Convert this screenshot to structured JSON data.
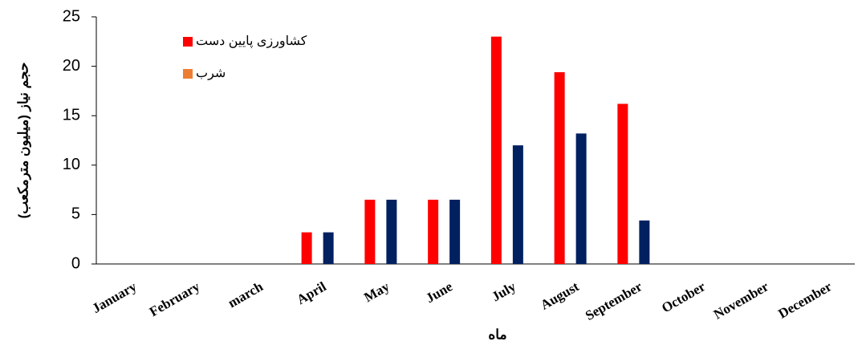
{
  "chart_data": {
    "type": "bar",
    "categories": [
      "January",
      "February",
      "march",
      "April",
      "May",
      "June",
      "July",
      "August",
      "September",
      "October",
      "November",
      "December"
    ],
    "series": [
      {
        "name": "کشاورزی پایین دست",
        "color": "#ff0000",
        "legend_color": "#ff0000",
        "values": [
          0,
          0,
          0,
          3.2,
          6.5,
          6.5,
          23,
          19.4,
          16.2,
          0,
          0,
          0
        ]
      },
      {
        "name": "شرب",
        "color": "#002060",
        "legend_color": "#ed7d31",
        "values": [
          0,
          0,
          0,
          3.2,
          6.5,
          6.5,
          12,
          13.2,
          4.4,
          0,
          0,
          0
        ]
      }
    ],
    "xlabel": "ماه",
    "ylabel": "حجم نیاز (میلیون مترمکعب)",
    "ylim": [
      0,
      25
    ],
    "yticks": [
      0,
      5,
      10,
      15,
      20,
      25
    ]
  }
}
